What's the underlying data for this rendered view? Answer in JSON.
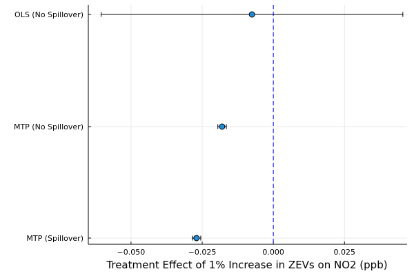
{
  "chart_data": {
    "type": "scatter",
    "subtype": "coefficient-plot-with-error-bars",
    "title": "",
    "xlabel": "Treatment Effect of 1% Increase in ZEVs on NO2 (ppb)",
    "ylabel": "",
    "xlim": [
      -0.065,
      0.047
    ],
    "xticks": [
      -0.05,
      -0.025,
      0.0,
      0.025
    ],
    "xtick_labels": [
      "−0.050",
      "−0.025",
      "0.000",
      "0.025"
    ],
    "categories": [
      "OLS (No Spillover)",
      "MTP (No Spillover)",
      "MTP (Spillover)"
    ],
    "points": [
      {
        "label": "OLS (No Spillover)",
        "estimate": -0.0075,
        "lower": -0.0605,
        "upper": 0.0455
      },
      {
        "label": "MTP (No Spillover)",
        "estimate": -0.018,
        "lower": -0.0195,
        "upper": -0.0165
      },
      {
        "label": "MTP (Spillover)",
        "estimate": -0.027,
        "lower": -0.0285,
        "upper": -0.0255
      }
    ],
    "reference_line": {
      "x": 0.0,
      "style": "dashed",
      "color": "#0000ff"
    },
    "marker_color": "#1f8ad6",
    "grid": true,
    "legend": "none"
  }
}
